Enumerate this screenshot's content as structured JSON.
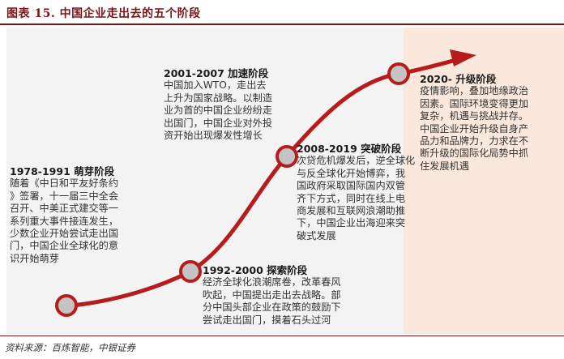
{
  "figure": {
    "title": "图表 15.  中国企业走出去的五个阶段",
    "source": "资料来源：百炼智能，中银证券"
  },
  "colors": {
    "curve": "#b71c1c",
    "node_fill": "#c4c4c4",
    "panel": "#f3f3f3",
    "highlight": "#fbe8dc",
    "title": "#7a1316"
  },
  "stages": [
    {
      "title": "1978-1991  萌芽阶段",
      "text": "随着《中日和平友好条约\n》签署，十一届三中全会\n召开、中美正式建交等一\n系列重大事件接连发生，\n少数企业开始尝试走出国\n门，中国企业全球化的意\n识开始萌芽"
    },
    {
      "title": "1992-2000 探索阶段",
      "text": "经济全球化浪潮席卷，改革春风\n吹起，中国提出走出去战略。部\n分中国头部企业在政策的鼓励下\n尝试走出国门，摸着石头过河"
    },
    {
      "title": "2001-2007 加速阶段",
      "text": "中国加入WTO，走出去\n上升为国家战略。以制造\n业为首的中国企业纷纷走\n出国门，中国企业对外投\n资开始出现爆发性增长"
    },
    {
      "title": "2008-2019 突破阶段",
      "text": "次贷危机爆发后，逆全球化\n与反全球化开始博弈，我\n国政府采取国际国内双管\n齐下方式，同时在线上电\n商发展和互联网浪潮助推\n下，中国企业出海迎来突\n破式发展"
    },
    {
      "title": "2020- 升级阶段",
      "text": "疫情影响，叠加地缘政治\n因素。国际环境变得更加\n复杂，机遇与挑战并存。\n中国企业开始升级自身产\n品力和品牌力，力求在不\n断升级的国际化局势中抓\n住发展机遇"
    }
  ]
}
